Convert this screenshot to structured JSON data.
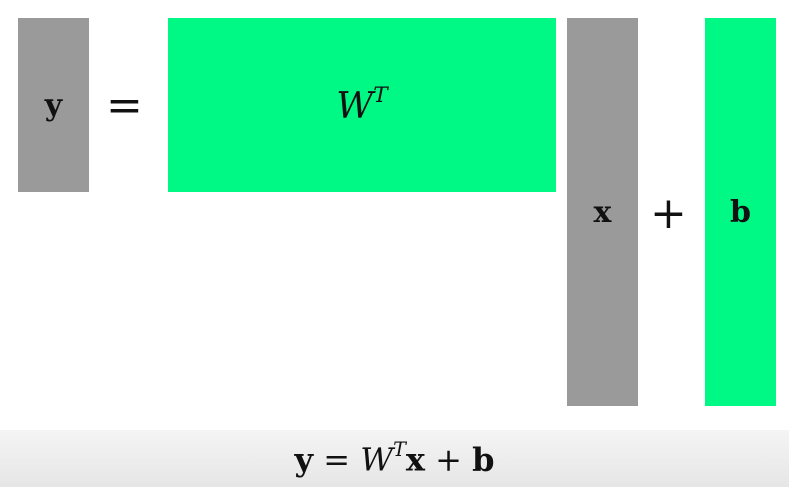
{
  "diagram": {
    "y_label": "y",
    "equals": "=",
    "w_label": "W",
    "w_sup": "T",
    "x_label": "x",
    "plus": "+",
    "b_label": "b"
  },
  "equation": {
    "y": "y",
    "eq": "=",
    "w": "W",
    "sup": "T",
    "x": "x",
    "plus": "+",
    "b": "b"
  },
  "colors": {
    "vector_gray": "#9a9a9a",
    "matrix_green": "#00f985"
  }
}
